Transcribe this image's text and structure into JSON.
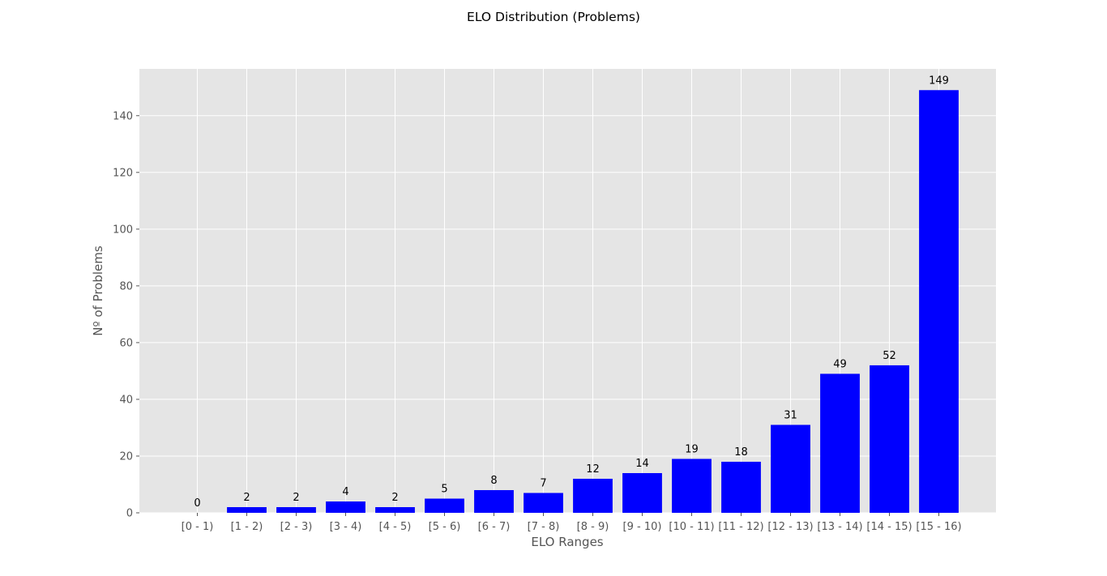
{
  "chart_data": {
    "type": "bar",
    "title": "ELO Distribution (Problems)",
    "xlabel": "ELO Ranges",
    "ylabel": "Nº of Problems",
    "categories": [
      "[0 - 1)",
      "[1 - 2)",
      "[2 - 3)",
      "[3 - 4)",
      "[4 - 5)",
      "[5 - 6)",
      "[6 - 7)",
      "[7 - 8)",
      "[8 - 9)",
      "[9 - 10)",
      "[10 - 11)",
      "[11 - 12)",
      "[12 - 13)",
      "[13 - 14)",
      "[14 - 15)",
      "[15 - 16)"
    ],
    "values": [
      0,
      2,
      2,
      4,
      2,
      5,
      8,
      7,
      12,
      14,
      19,
      18,
      31,
      49,
      52,
      149
    ],
    "data_labels": [
      "0",
      "2",
      "2",
      "4",
      "2",
      "5",
      "8",
      "7",
      "12",
      "14",
      "19",
      "18",
      "31",
      "49",
      "52",
      "149"
    ],
    "ylim": [
      0,
      156.5
    ],
    "yticks": [
      0,
      20,
      40,
      60,
      80,
      100,
      120,
      140
    ],
    "grid": true,
    "bar_color": "#0000ff",
    "background_color": "#e5e5e5"
  }
}
